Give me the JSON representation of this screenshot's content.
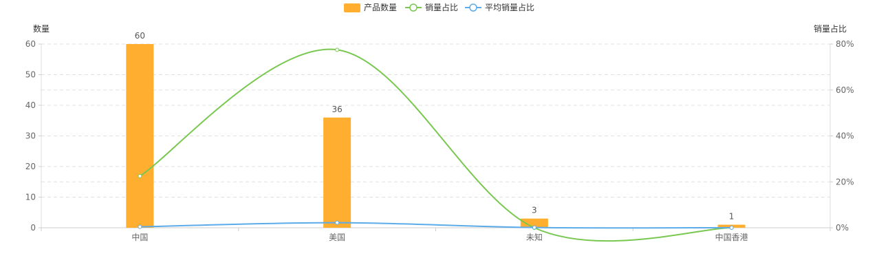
{
  "chart_data": {
    "type": "bar",
    "categories": [
      "中国",
      "美国",
      "未知",
      "中国香港"
    ],
    "series": [
      {
        "name": "产品数量",
        "type": "bar",
        "axis": "left",
        "values": [
          60,
          36,
          3,
          1
        ],
        "color": "#FFAE30"
      },
      {
        "name": "销量占比",
        "type": "line",
        "axis": "right",
        "values": [
          22.5,
          77.5,
          0,
          0
        ],
        "color": "#78C850"
      },
      {
        "name": "平均销量占比",
        "type": "line",
        "axis": "right",
        "values": [
          0.4,
          2.2,
          0.1,
          0.05
        ],
        "color": "#5AABE8"
      }
    ],
    "ylabel": "数量",
    "ylabel_right": "销量占比",
    "ylim": [
      0,
      60
    ],
    "yticks": [
      0,
      10,
      20,
      30,
      40,
      50,
      60
    ],
    "ylim_right": [
      0,
      80
    ],
    "yticks_right": [
      "0%",
      "20%",
      "40%",
      "60%",
      "80%"
    ],
    "yticks_right_values": [
      0,
      20,
      40,
      60,
      80
    ],
    "grid": true,
    "legend": "top-center"
  }
}
